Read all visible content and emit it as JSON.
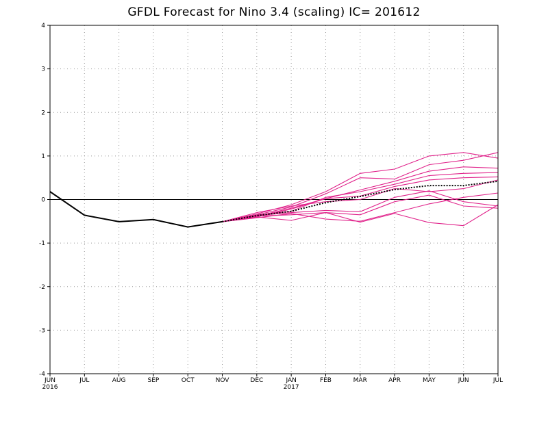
{
  "chart_data": {
    "type": "line",
    "title": "GFDL Forecast for Nino 3.4 (scaling) IC= 201612",
    "xlabel": "",
    "ylabel": "",
    "ylim": [
      -4,
      4
    ],
    "yticks": [
      -4,
      -3,
      -2,
      -1,
      0,
      1,
      2,
      3,
      4
    ],
    "x_ticks": [
      {
        "label": "JUN",
        "sub": "2016"
      },
      {
        "label": "JUL",
        "sub": ""
      },
      {
        "label": "AUG",
        "sub": ""
      },
      {
        "label": "SEP",
        "sub": ""
      },
      {
        "label": "OCT",
        "sub": ""
      },
      {
        "label": "NOV",
        "sub": ""
      },
      {
        "label": "DEC",
        "sub": ""
      },
      {
        "label": "JAN",
        "sub": "2017"
      },
      {
        "label": "FEB",
        "sub": ""
      },
      {
        "label": "MAR",
        "sub": ""
      },
      {
        "label": "APR",
        "sub": ""
      },
      {
        "label": "MAY",
        "sub": ""
      },
      {
        "label": "JUN",
        "sub": ""
      },
      {
        "label": "JUL",
        "sub": ""
      }
    ],
    "grid": true,
    "zero_line": true,
    "colors": {
      "observed": "#000000",
      "members": "#e0218a",
      "mean": "#000000",
      "grid": "#999999"
    },
    "observed": {
      "x": [
        "JUN 2016",
        "JUL",
        "AUG",
        "SEP",
        "OCT",
        "NOV"
      ],
      "values": [
        0.18,
        -0.36,
        -0.51,
        -0.46,
        -0.63,
        -0.51
      ]
    },
    "members": [
      {
        "values": [
          -0.51,
          -0.33,
          -0.12,
          0.18,
          0.6,
          0.7,
          1.0,
          1.08,
          0.95
        ]
      },
      {
        "values": [
          -0.51,
          -0.35,
          -0.17,
          0.13,
          0.5,
          0.47,
          0.8,
          0.9,
          1.08
        ]
      },
      {
        "values": [
          -0.51,
          -0.38,
          -0.2,
          0.02,
          0.22,
          0.42,
          0.65,
          0.75,
          0.72
        ]
      },
      {
        "values": [
          -0.51,
          -0.36,
          -0.27,
          0.05,
          0.18,
          0.35,
          0.55,
          0.6,
          0.62
        ]
      },
      {
        "values": [
          -0.51,
          -0.4,
          -0.22,
          0.02,
          0.08,
          0.3,
          0.45,
          0.5,
          0.52
        ]
      },
      {
        "values": [
          -0.51,
          -0.3,
          -0.15,
          -0.05,
          0.0,
          0.25,
          0.18,
          0.25,
          0.45
        ]
      },
      {
        "values": [
          -0.51,
          -0.37,
          -0.3,
          -0.25,
          -0.28,
          0.05,
          0.2,
          -0.05,
          -0.15
        ]
      },
      {
        "values": [
          -0.51,
          -0.38,
          -0.35,
          -0.3,
          -0.35,
          -0.05,
          0.1,
          -0.15,
          -0.2
        ]
      },
      {
        "values": [
          -0.51,
          -0.42,
          -0.32,
          -0.45,
          -0.5,
          -0.3,
          -0.1,
          0.05,
          0.15
        ]
      },
      {
        "values": [
          -0.51,
          -0.4,
          -0.48,
          -0.3,
          -0.52,
          -0.32,
          -0.53,
          -0.6,
          -0.12
        ]
      }
    ],
    "mean": {
      "x": [
        "NOV",
        "DEC",
        "JAN 2017",
        "FEB",
        "MAR",
        "APR",
        "MAY",
        "JUN",
        "JUL"
      ],
      "values": [
        -0.51,
        -0.37,
        -0.27,
        -0.07,
        0.07,
        0.23,
        0.32,
        0.32,
        0.42
      ]
    }
  }
}
